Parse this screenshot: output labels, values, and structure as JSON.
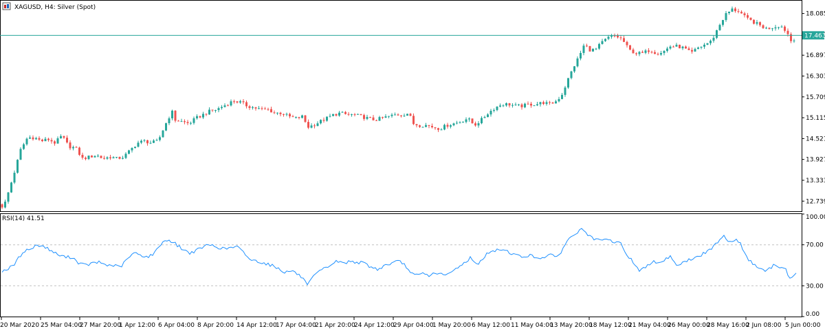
{
  "header": {
    "symbol_title": "XAGUSD, H4:  Silver (Spot)",
    "indicator_label": "RSI(14) 41.51"
  },
  "colors": {
    "bull": "#26a69a",
    "bear": "#ef5350",
    "rsi_line": "#1e90ff",
    "price_line": "#26a69a",
    "level_line": "#c0c0c0"
  },
  "chart_data": [
    {
      "type": "candlestick",
      "symbol": "XAGUSD",
      "timeframe": "H4",
      "yticks": [
        "18.085",
        "17.491",
        "16.897",
        "16.303",
        "15.709",
        "15.115",
        "14.521",
        "13.927",
        "13.333",
        "12.739"
      ],
      "ylim": [
        12.45,
        18.45
      ],
      "current_price": 17.463,
      "current_price_label": "17.463",
      "anchors": [
        [
          0,
          12.65
        ],
        [
          5,
          12.55
        ],
        [
          10,
          12.85
        ],
        [
          20,
          13.5
        ],
        [
          30,
          14.2
        ],
        [
          40,
          14.55
        ],
        [
          50,
          14.55
        ],
        [
          60,
          14.45
        ],
        [
          70,
          14.5
        ],
        [
          80,
          14.4
        ],
        [
          90,
          14.6
        ],
        [
          100,
          14.3
        ],
        [
          110,
          14.25
        ],
        [
          120,
          13.95
        ],
        [
          130,
          14.0
        ],
        [
          140,
          14.05
        ],
        [
          150,
          13.95
        ],
        [
          160,
          14.0
        ],
        [
          170,
          13.95
        ],
        [
          180,
          14.0
        ],
        [
          190,
          14.2
        ],
        [
          200,
          14.4
        ],
        [
          210,
          14.45
        ],
        [
          220,
          14.4
        ],
        [
          230,
          14.45
        ],
        [
          240,
          14.9
        ],
        [
          250,
          15.3
        ],
        [
          255,
          15.05
        ],
        [
          265,
          15.0
        ],
        [
          275,
          14.95
        ],
        [
          285,
          15.1
        ],
        [
          295,
          15.2
        ],
        [
          305,
          15.3
        ],
        [
          315,
          15.35
        ],
        [
          330,
          15.5
        ],
        [
          340,
          15.6
        ],
        [
          350,
          15.55
        ],
        [
          360,
          15.45
        ],
        [
          370,
          15.4
        ],
        [
          380,
          15.35
        ],
        [
          390,
          15.35
        ],
        [
          400,
          15.25
        ],
        [
          410,
          15.25
        ],
        [
          420,
          15.15
        ],
        [
          430,
          15.1
        ],
        [
          440,
          15.15
        ],
        [
          448,
          14.85
        ],
        [
          455,
          14.9
        ],
        [
          465,
          15.0
        ],
        [
          475,
          15.1
        ],
        [
          485,
          15.2
        ],
        [
          495,
          15.25
        ],
        [
          505,
          15.2
        ],
        [
          515,
          15.2
        ],
        [
          525,
          15.15
        ],
        [
          535,
          15.1
        ],
        [
          545,
          15.05
        ],
        [
          555,
          15.1
        ],
        [
          565,
          15.15
        ],
        [
          575,
          15.2
        ],
        [
          585,
          15.2
        ],
        [
          595,
          15.25
        ],
        [
          600,
          14.95
        ],
        [
          610,
          14.9
        ],
        [
          620,
          14.9
        ],
        [
          630,
          14.85
        ],
        [
          640,
          14.8
        ],
        [
          650,
          14.9
        ],
        [
          660,
          14.95
        ],
        [
          670,
          15.0
        ],
        [
          680,
          15.1
        ],
        [
          690,
          14.9
        ],
        [
          700,
          15.05
        ],
        [
          710,
          15.25
        ],
        [
          720,
          15.4
        ],
        [
          730,
          15.5
        ],
        [
          740,
          15.5
        ],
        [
          750,
          15.45
        ],
        [
          760,
          15.45
        ],
        [
          770,
          15.5
        ],
        [
          780,
          15.5
        ],
        [
          790,
          15.55
        ],
        [
          800,
          15.5
        ],
        [
          810,
          15.6
        ],
        [
          818,
          15.8
        ],
        [
          826,
          16.2
        ],
        [
          834,
          16.55
        ],
        [
          842,
          16.85
        ],
        [
          850,
          17.2
        ],
        [
          858,
          17.05
        ],
        [
          866,
          17.05
        ],
        [
          875,
          17.25
        ],
        [
          885,
          17.4
        ],
        [
          895,
          17.45
        ],
        [
          905,
          17.35
        ],
        [
          915,
          17.05
        ],
        [
          925,
          16.95
        ],
        [
          935,
          16.95
        ],
        [
          945,
          17.05
        ],
        [
          955,
          16.95
        ],
        [
          965,
          17.0
        ],
        [
          975,
          17.15
        ],
        [
          985,
          17.15
        ],
        [
          995,
          17.1
        ],
        [
          1005,
          16.95
        ],
        [
          1015,
          17.1
        ],
        [
          1025,
          17.2
        ],
        [
          1035,
          17.3
        ],
        [
          1045,
          17.7
        ],
        [
          1055,
          18.05
        ],
        [
          1065,
          18.2
        ],
        [
          1075,
          18.15
        ],
        [
          1085,
          17.95
        ],
        [
          1095,
          17.85
        ],
        [
          1105,
          17.75
        ],
        [
          1115,
          17.65
        ],
        [
          1125,
          17.7
        ],
        [
          1135,
          17.75
        ],
        [
          1145,
          17.55
        ],
        [
          1150,
          17.3
        ],
        [
          1158,
          17.4
        ]
      ]
    },
    {
      "type": "line",
      "name": "RSI(14)",
      "last_value": 41.51,
      "ylim": [
        0,
        100
      ],
      "yticks": [
        "100.00",
        "70.00",
        "30.00",
        "0.00"
      ],
      "levels": [
        30,
        70
      ],
      "anchors": [
        [
          0,
          44
        ],
        [
          10,
          46
        ],
        [
          20,
          50
        ],
        [
          28,
          58
        ],
        [
          35,
          64
        ],
        [
          45,
          66
        ],
        [
          55,
          70
        ],
        [
          65,
          68
        ],
        [
          75,
          64
        ],
        [
          85,
          60
        ],
        [
          95,
          58
        ],
        [
          105,
          58
        ],
        [
          115,
          52
        ],
        [
          125,
          50
        ],
        [
          135,
          52
        ],
        [
          145,
          53
        ],
        [
          155,
          50
        ],
        [
          165,
          50
        ],
        [
          175,
          48
        ],
        [
          185,
          56
        ],
        [
          195,
          62
        ],
        [
          205,
          60
        ],
        [
          215,
          58
        ],
        [
          225,
          62
        ],
        [
          235,
          72
        ],
        [
          245,
          75
        ],
        [
          255,
          71
        ],
        [
          265,
          66
        ],
        [
          275,
          62
        ],
        [
          285,
          64
        ],
        [
          295,
          68
        ],
        [
          305,
          70
        ],
        [
          315,
          68
        ],
        [
          325,
          66
        ],
        [
          335,
          67
        ],
        [
          345,
          68
        ],
        [
          355,
          62
        ],
        [
          365,
          55
        ],
        [
          375,
          54
        ],
        [
          385,
          52
        ],
        [
          395,
          50
        ],
        [
          405,
          47
        ],
        [
          415,
          43
        ],
        [
          425,
          45
        ],
        [
          435,
          40
        ],
        [
          440,
          38
        ],
        [
          447,
          30
        ],
        [
          452,
          35
        ],
        [
          460,
          42
        ],
        [
          470,
          46
        ],
        [
          480,
          50
        ],
        [
          490,
          54
        ],
        [
          500,
          52
        ],
        [
          510,
          54
        ],
        [
          520,
          53
        ],
        [
          530,
          52
        ],
        [
          540,
          48
        ],
        [
          550,
          46
        ],
        [
          560,
          50
        ],
        [
          570,
          52
        ],
        [
          580,
          54
        ],
        [
          590,
          50
        ],
        [
          597,
          42
        ],
        [
          605,
          40
        ],
        [
          615,
          42
        ],
        [
          625,
          40
        ],
        [
          635,
          43
        ],
        [
          645,
          40
        ],
        [
          655,
          42
        ],
        [
          665,
          48
        ],
        [
          675,
          52
        ],
        [
          685,
          58
        ],
        [
          692,
          50
        ],
        [
          700,
          55
        ],
        [
          710,
          62
        ],
        [
          720,
          64
        ],
        [
          730,
          66
        ],
        [
          740,
          63
        ],
        [
          750,
          60
        ],
        [
          760,
          58
        ],
        [
          770,
          60
        ],
        [
          780,
          57
        ],
        [
          790,
          58
        ],
        [
          800,
          60
        ],
        [
          808,
          58
        ],
        [
          815,
          62
        ],
        [
          822,
          70
        ],
        [
          830,
          78
        ],
        [
          840,
          82
        ],
        [
          848,
          86
        ],
        [
          855,
          79
        ],
        [
          862,
          76
        ],
        [
          872,
          74
        ],
        [
          882,
          75
        ],
        [
          892,
          73
        ],
        [
          902,
          72
        ],
        [
          912,
          60
        ],
        [
          920,
          54
        ],
        [
          930,
          45
        ],
        [
          940,
          48
        ],
        [
          950,
          55
        ],
        [
          958,
          52
        ],
        [
          968,
          56
        ],
        [
          975,
          59
        ],
        [
          985,
          50
        ],
        [
          995,
          53
        ],
        [
          1005,
          56
        ],
        [
          1015,
          58
        ],
        [
          1025,
          62
        ],
        [
          1035,
          66
        ],
        [
          1045,
          74
        ],
        [
          1053,
          80
        ],
        [
          1060,
          72
        ],
        [
          1070,
          76
        ],
        [
          1078,
          70
        ],
        [
          1085,
          58
        ],
        [
          1095,
          52
        ],
        [
          1105,
          46
        ],
        [
          1115,
          44
        ],
        [
          1125,
          50
        ],
        [
          1135,
          48
        ],
        [
          1142,
          49
        ],
        [
          1148,
          36
        ],
        [
          1158,
          42
        ]
      ]
    }
  ],
  "x_axis_labels": [
    "20 Mar 2020",
    "25 Mar 04:00",
    "27 Mar 20:00",
    "1 Apr 12:00",
    "6 Apr 04:00",
    "8 Apr 20:00",
    "14 Apr 12:00",
    "17 Apr 04:00",
    "21 Apr 20:00",
    "24 Apr 12:00",
    "29 Apr 04:00",
    "1 May 20:00",
    "6 May 12:00",
    "11 May 04:00",
    "13 May 20:00",
    "18 May 12:00",
    "21 May 04:00",
    "26 May 00:00",
    "28 May 16:00",
    "2 Jun 08:00",
    "5 Jun 00:00"
  ]
}
